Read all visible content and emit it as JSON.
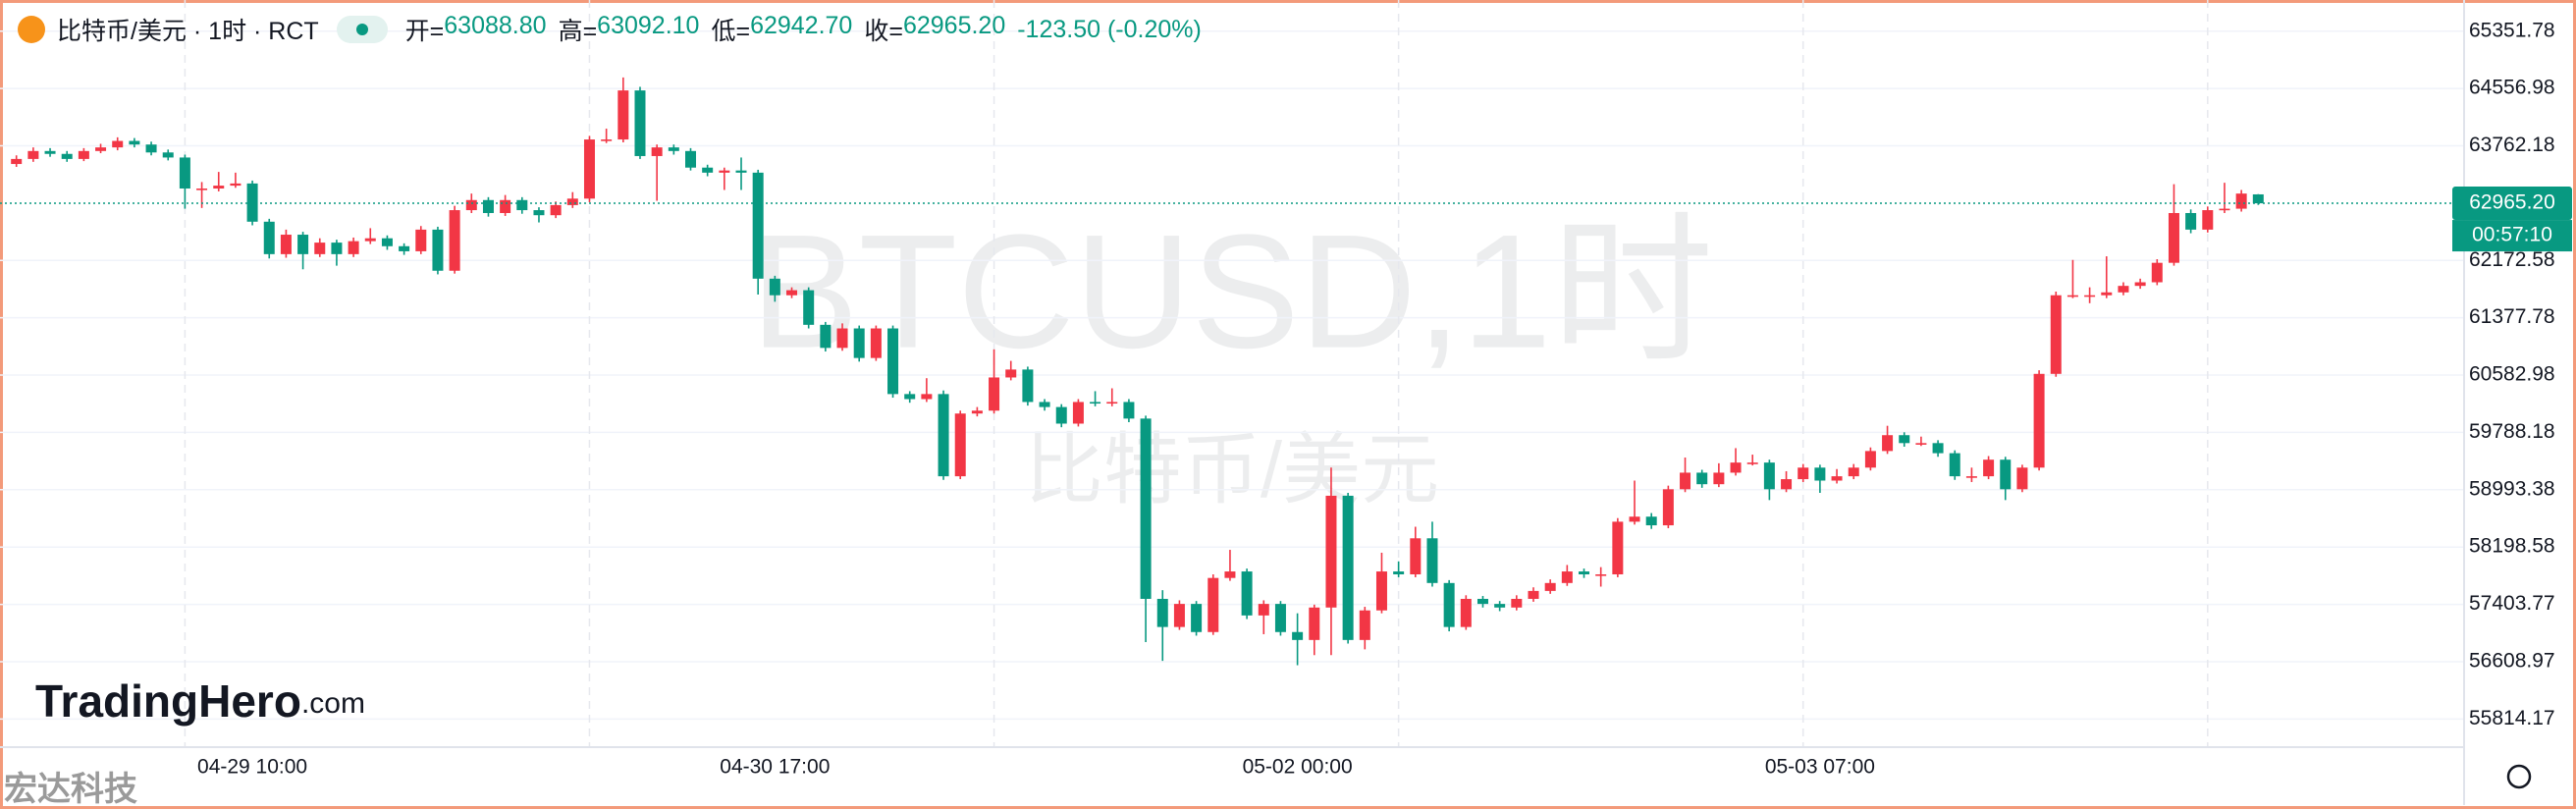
{
  "header": {
    "symbol": "比特币/美元 · 1时 · RCT",
    "open_label": "开=",
    "open": "63088.80",
    "high_label": "高=",
    "high": "63092.10",
    "low_label": "低=",
    "low": "62942.70",
    "close_label": "收=",
    "close": "62965.20",
    "change": "-123.50 (-0.20%)"
  },
  "watermark": "BTCUSD,1时",
  "watermark_sub": "比特币/美元",
  "logo": "TradingHero",
  "logo_suffix": ".com",
  "corner_mark": "宏达科技",
  "chart_data": {
    "type": "candlestick",
    "up_color": "#f23645",
    "down_color": "#089981",
    "grid": true,
    "ylim": [
      55424,
      65716
    ],
    "yticks": [
      65351.78,
      64556.98,
      63762.18,
      62172.58,
      61377.78,
      60582.98,
      59788.18,
      58993.38,
      58198.58,
      57403.77,
      56608.97,
      55814.17
    ],
    "last_price": {
      "value": 62965.2,
      "label": "62965.20"
    },
    "countdown": "00:57:10",
    "categories": [
      null,
      null,
      null,
      null,
      null,
      null,
      null,
      null,
      null,
      null,
      null,
      null,
      null,
      null,
      "04-29 10:00",
      null,
      null,
      null,
      null,
      null,
      null,
      null,
      null,
      null,
      null,
      null,
      null,
      null,
      null,
      null,
      null,
      null,
      null,
      null,
      null,
      null,
      null,
      null,
      null,
      null,
      null,
      null,
      null,
      null,
      null,
      "04-30 17:00",
      null,
      null,
      null,
      null,
      null,
      null,
      null,
      null,
      null,
      null,
      null,
      null,
      null,
      null,
      null,
      null,
      null,
      null,
      null,
      null,
      null,
      null,
      null,
      null,
      null,
      null,
      null,
      null,
      null,
      null,
      "05-02 00:00",
      null,
      null,
      null,
      null,
      null,
      null,
      null,
      null,
      null,
      null,
      null,
      null,
      null,
      null,
      null,
      null,
      null,
      null,
      null,
      null,
      null,
      null,
      null,
      null,
      null,
      null,
      null,
      null,
      null,
      null,
      "05-03 07:00",
      null,
      null,
      null,
      null,
      null,
      null,
      null,
      null,
      null,
      null,
      null,
      null,
      null,
      null,
      null,
      null,
      null,
      null,
      null,
      null,
      null,
      null,
      null,
      null,
      null,
      null
    ],
    "open": [
      63510,
      63580,
      63690,
      63650,
      63580,
      63690,
      63740,
      63830,
      63780,
      63670,
      63600,
      63170,
      63170,
      63210,
      63240,
      62710,
      62260,
      62530,
      62260,
      62420,
      62260,
      62440,
      62480,
      62370,
      62300,
      62600,
      62030,
      62870,
      63010,
      62830,
      63010,
      62870,
      62800,
      62940,
      63030,
      63850,
      63850,
      64530,
      63620,
      63740,
      63690,
      63460,
      63390,
      63420,
      63390,
      61920,
      61690,
      61760,
      61280,
      60960,
      61230,
      60820,
      61230,
      60320,
      60250,
      60320,
      59180,
      60050,
      60090,
      60550,
      60660,
      60210,
      60140,
      59910,
      60210,
      60190,
      60210,
      59980,
      57480,
      57090,
      57410,
      57020,
      57770,
      57860,
      57250,
      57410,
      57020,
      56910,
      57360,
      58910,
      56910,
      57320,
      57860,
      57820,
      58320,
      57700,
      57090,
      57480,
      57410,
      57360,
      57480,
      57590,
      57700,
      57860,
      57820,
      57820,
      58550,
      58620,
      58500,
      59000,
      59230,
      59070,
      59230,
      59370,
      59370,
      59000,
      59140,
      59300,
      59120,
      59180,
      59300,
      59530,
      59750,
      59640,
      59640,
      59500,
      59180,
      59180,
      59410,
      59000,
      59300,
      60600,
      61690,
      61690,
      61690,
      61730,
      61820,
      61870,
      62140,
      62830,
      62600,
      62870,
      62890,
      63088.8
    ],
    "high": [
      63630,
      63740,
      63730,
      63690,
      63730,
      63790,
      63880,
      63870,
      63820,
      63710,
      63640,
      63260,
      63400,
      63390,
      63280,
      62750,
      62600,
      62570,
      62480,
      62460,
      62490,
      62620,
      62520,
      62410,
      62650,
      62640,
      62930,
      63100,
      63050,
      63080,
      63050,
      62910,
      62990,
      63120,
      63900,
      64000,
      64710,
      64580,
      63780,
      63780,
      63730,
      63500,
      63460,
      63600,
      63430,
      61960,
      61800,
      61800,
      61320,
      61300,
      61270,
      61270,
      61270,
      60360,
      60540,
      60370,
      60090,
      60140,
      60940,
      60780,
      60700,
      60250,
      60180,
      60250,
      60360,
      60400,
      60250,
      60020,
      57600,
      57460,
      57450,
      57820,
      58160,
      57900,
      57460,
      57450,
      57280,
      57400,
      59300,
      58950,
      57370,
      58120,
      58000,
      58480,
      58550,
      57740,
      57530,
      57520,
      57450,
      57530,
      57640,
      57750,
      57950,
      57900,
      57920,
      58600,
      59120,
      58670,
      59050,
      59440,
      59270,
      59360,
      59570,
      59480,
      59410,
      59250,
      59350,
      59340,
      59280,
      59350,
      59580,
      59880,
      59790,
      59730,
      59680,
      59540,
      59300,
      59460,
      59450,
      59340,
      60650,
      61740,
      62180,
      61800,
      62230,
      61870,
      61920,
      62190,
      63230,
      62880,
      62920,
      63250,
      63150,
      63092.1
    ],
    "low": [
      63470,
      63540,
      63610,
      63540,
      63550,
      63660,
      63700,
      63740,
      63630,
      63560,
      62890,
      62900,
      63130,
      63180,
      62660,
      62200,
      62210,
      62050,
      62220,
      62100,
      62220,
      62400,
      62320,
      62250,
      62260,
      61980,
      61990,
      62830,
      62780,
      62790,
      62820,
      62700,
      62760,
      62900,
      62980,
      63800,
      63810,
      63580,
      63000,
      63640,
      63420,
      63340,
      63150,
      63150,
      61700,
      61600,
      61650,
      61230,
      60910,
      60920,
      60770,
      60780,
      60270,
      60200,
      60210,
      59130,
      59140,
      60010,
      60050,
      60510,
      60160,
      60090,
      59860,
      59870,
      60150,
      60150,
      59930,
      56880,
      56620,
      57050,
      56970,
      56980,
      57730,
      57200,
      56990,
      56970,
      56560,
      56700,
      56700,
      56860,
      56780,
      57280,
      57780,
      57780,
      57650,
      57030,
      57050,
      57360,
      57310,
      57320,
      57440,
      57550,
      57660,
      57770,
      57650,
      57780,
      58510,
      58450,
      58460,
      58960,
      59020,
      59030,
      59190,
      59330,
      58850,
      58960,
      59100,
      58950,
      59080,
      59140,
      59260,
      59490,
      59590,
      59600,
      59450,
      59130,
      59100,
      59140,
      58850,
      58960,
      59260,
      60560,
      61650,
      61580,
      61650,
      61690,
      61780,
      61830,
      62100,
      62550,
      62560,
      62830,
      62850,
      62942.7
    ],
    "close": [
      63580,
      63690,
      63650,
      63580,
      63690,
      63740,
      63830,
      63780,
      63670,
      63600,
      63170,
      63170,
      63210,
      63240,
      62710,
      62260,
      62530,
      62260,
      62420,
      62260,
      62440,
      62480,
      62370,
      62300,
      62600,
      62030,
      62870,
      63010,
      62830,
      63010,
      62870,
      62800,
      62940,
      63030,
      63850,
      63850,
      64530,
      63620,
      63740,
      63690,
      63460,
      63390,
      63420,
      63390,
      61920,
      61690,
      61760,
      61280,
      60960,
      61230,
      60820,
      61230,
      60320,
      60250,
      60320,
      59180,
      60050,
      60090,
      60550,
      60660,
      60210,
      60140,
      59910,
      60210,
      60190,
      60210,
      59980,
      57480,
      57090,
      57410,
      57020,
      57770,
      57860,
      57250,
      57410,
      57020,
      56910,
      57360,
      58910,
      56910,
      57320,
      57860,
      57820,
      58320,
      57700,
      57090,
      57480,
      57410,
      57360,
      57480,
      57590,
      57700,
      57860,
      57820,
      57820,
      58550,
      58620,
      58500,
      59000,
      59230,
      59070,
      59230,
      59370,
      59370,
      59000,
      59140,
      59300,
      59120,
      59180,
      59300,
      59530,
      59750,
      59640,
      59640,
      59500,
      59180,
      59180,
      59410,
      59000,
      59300,
      60600,
      61690,
      61690,
      61690,
      61730,
      61820,
      61870,
      62140,
      62830,
      62600,
      62870,
      62890,
      63100,
      62965.2
    ]
  }
}
